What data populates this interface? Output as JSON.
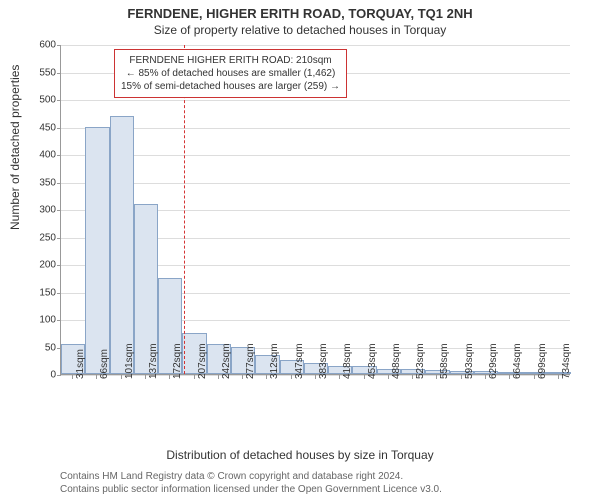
{
  "title": "FERNDENE, HIGHER ERITH ROAD, TORQUAY, TQ1 2NH",
  "subtitle": "Size of property relative to detached houses in Torquay",
  "chart": {
    "type": "histogram",
    "ylabel": "Number of detached properties",
    "xlabel": "Distribution of detached houses by size in Torquay",
    "ylim": [
      0,
      600
    ],
    "ytick_step": 50,
    "yticks": [
      0,
      50,
      100,
      150,
      200,
      250,
      300,
      350,
      400,
      450,
      500,
      550,
      600
    ],
    "xticks": [
      "31sqm",
      "66sqm",
      "101sqm",
      "137sqm",
      "172sqm",
      "207sqm",
      "242sqm",
      "277sqm",
      "312sqm",
      "347sqm",
      "383sqm",
      "418sqm",
      "453sqm",
      "488sqm",
      "523sqm",
      "558sqm",
      "593sqm",
      "629sqm",
      "664sqm",
      "699sqm",
      "734sqm"
    ],
    "values": [
      55,
      450,
      470,
      310,
      175,
      75,
      55,
      50,
      35,
      25,
      20,
      15,
      15,
      10,
      10,
      8,
      5,
      5,
      3,
      3,
      2
    ],
    "bar_fill": "#dbe4f0",
    "bar_border": "#8aa5c7",
    "grid_color": "#dddddd",
    "axis_color": "#999999",
    "background_color": "#ffffff",
    "reference_line": {
      "index": 5,
      "color": "#d43333",
      "style": "dashed"
    },
    "annotation": {
      "lines": [
        "FERNDENE HIGHER ERITH ROAD: 210sqm",
        "← 85% of detached houses are smaller (1,462)",
        "15% of semi-detached houses are larger (259) →"
      ],
      "border_color": "#cc3333",
      "text_color": "#333333",
      "fontsize": 10
    },
    "title_fontsize": 13,
    "label_fontsize": 12,
    "tick_fontsize": 10
  },
  "footer": {
    "line1": "Contains HM Land Registry data © Crown copyright and database right 2024.",
    "line2": "Contains public sector information licensed under the Open Government Licence v3.0."
  }
}
